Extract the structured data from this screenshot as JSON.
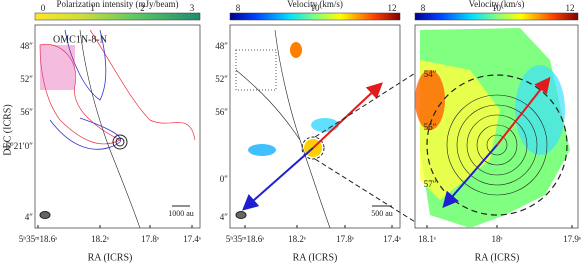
{
  "panels": [
    {
      "colorbar": {
        "title": "Polarization intensity (mJy/beam)",
        "ticks": [
          "0",
          "1",
          "2",
          "3"
        ]
      },
      "source": "OMC1N-8-N",
      "scalebar": "1000 au",
      "xticks": [
        "5ʰ35ᵐ18.6ˢ",
        "18.2ˢ",
        "17.8ˢ",
        "17.4ˢ"
      ],
      "yticks": [
        "48″",
        "52″",
        "56″",
        "-5°21′0″",
        "4″"
      ],
      "xlabel": "RA (ICRS)",
      "ylabel": "DEC (ICRS)"
    },
    {
      "colorbar": {
        "title": "Velocity (km/s)",
        "ticks": [
          "8",
          "10",
          "12"
        ]
      },
      "scalebar": "500 au",
      "xticks": [
        "5ʰ35ᵐ18.6ˢ",
        "18.2ˢ",
        "17.8ˢ",
        "17.4ˢ"
      ],
      "yticks": [
        "48″",
        "52″",
        "56″",
        "0″",
        "4″"
      ],
      "xlabel": "RA (ICRS)"
    },
    {
      "colorbar": {
        "title": "Velocity (km/s)",
        "ticks": [
          "8",
          "10",
          "12"
        ]
      },
      "xticks": [
        "18.1ˢ",
        "18ˢ",
        "17.9ˢ"
      ],
      "yticks": [
        "54″",
        "56″",
        "57″"
      ],
      "xlabel": "RA (ICRS)"
    }
  ]
}
